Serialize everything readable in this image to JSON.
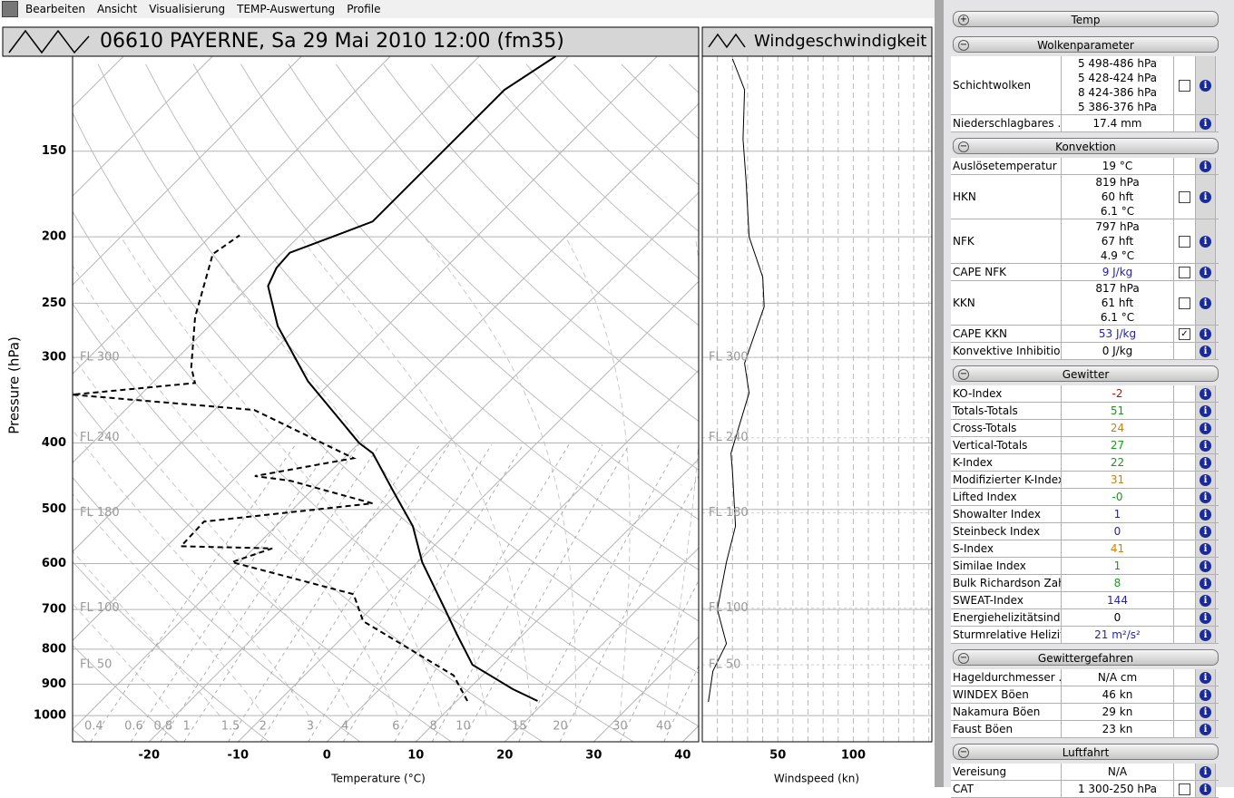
{
  "menu": [
    "Bearbeiten",
    "Ansicht",
    "Visualisierung",
    "TEMP-Auswertung",
    "Profile"
  ],
  "skewt": {
    "type": "line",
    "title": "06610 PAYERNE, Sa 29 Mai 2010 12:00 (fm35)",
    "xlabel": "Temperature (°C)",
    "ylabel": "Pressure (hPa)",
    "xlim": [
      -28.6,
      41.8
    ],
    "xticks": [
      -20,
      -10,
      0,
      10,
      20,
      30,
      40
    ],
    "ylim": [
      1092,
      109
    ],
    "yticks": [
      150,
      200,
      250,
      300,
      400,
      500,
      600,
      700,
      800,
      900,
      1000
    ],
    "log_y": true,
    "skew_deg": 45,
    "flight_levels": [
      {
        "value": 300,
        "label": "FL 300"
      },
      {
        "value": 393,
        "label": "FL 240"
      },
      {
        "value": 506,
        "label": "FL 180"
      },
      {
        "value": 697,
        "label": "FL 100"
      },
      {
        "value": 843,
        "label": "FL 50"
      }
    ],
    "mixing_ratios": [
      0.4,
      0.6,
      0.8,
      1,
      1.5,
      2,
      3,
      4,
      6,
      8,
      10,
      15,
      20,
      30,
      40
    ],
    "series": [
      {
        "color": "#000000",
        "dash": false,
        "pressure": [
          952,
          915,
          843,
          762,
          700,
          597,
          529,
          468,
          414,
          400,
          325,
          270,
          236,
          222,
          211,
          200,
          190,
          149,
          122,
          109
        ],
        "values": [
          19.1,
          15.0,
          7.7,
          2.6,
          -1.6,
          -9.5,
          -14.6,
          -21,
          -27.3,
          -30.0,
          -42.7,
          -52.3,
          -57.9,
          -59,
          -59.2,
          -56.2,
          -53.4,
          -53.4,
          -53.4,
          -51.4
        ]
      },
      {
        "color": "#000000",
        "dash": true,
        "pressure": [
          952,
          874,
          798,
          728,
          665,
          597,
          570,
          566,
          521,
          490,
          454,
          447,
          421,
          358,
          340,
          327,
          310,
          262,
          212,
          199
        ],
        "values": [
          11.2,
          6.8,
          -1.3,
          -9.5,
          -13.6,
          -30.9,
          -27.9,
          -38.4,
          -38.6,
          -21.7,
          -33.5,
          -38,
          -28.9,
          -45.5,
          -67.7,
          -55.2,
          -57.4,
          -62.6,
          -67.7,
          -66.8
        ]
      }
    ]
  },
  "wind": {
    "type": "line",
    "title": "Windgeschwindigkeit",
    "xlabel": "Windspeed (kn)",
    "xlim": [
      0,
      152
    ],
    "xticks": [
      50,
      100
    ],
    "pressure": [
      955,
      861,
      785,
      700,
      597,
      529,
      441,
      414,
      338,
      306,
      253,
      229,
      200,
      166,
      144,
      122,
      110
    ],
    "values": [
      4,
      7,
      16,
      10,
      16,
      22,
      20,
      19,
      31,
      28,
      41,
      40,
      31,
      29,
      27,
      28,
      20
    ]
  },
  "panel": {
    "sections": [
      {
        "title": "Temp",
        "collapsed": true,
        "rows": []
      },
      {
        "title": "Wolkenparameter",
        "collapsed": false,
        "rows": [
          {
            "label": "Schichtwolken",
            "values": [
              "5  498-486 hPa",
              "5  428-424 hPa",
              "8  424-386 hPa",
              "5  386-376 hPa"
            ],
            "checkbox": false
          },
          {
            "label": "Niederschlagbares ...",
            "value": "17.4 mm"
          }
        ]
      },
      {
        "title": "Konvektion",
        "collapsed": false,
        "rows": [
          {
            "label": "Auslösetemperatur",
            "value": "19 °C"
          },
          {
            "label": "HKN",
            "values": [
              "819 hPa",
              "60 hft",
              "6.1 °C"
            ],
            "checkbox": false
          },
          {
            "label": "NFK",
            "values": [
              "797 hPa",
              "67 hft",
              "4.9 °C"
            ],
            "checkbox": false
          },
          {
            "label": "CAPE NFK",
            "value": "9 J/kg",
            "color": "#2020c0",
            "checkbox": false
          },
          {
            "label": "KKN",
            "values": [
              "817 hPa",
              "61 hft",
              "6.1 °C"
            ],
            "checkbox": false
          },
          {
            "label": "CAPE KKN",
            "value": "53 J/kg",
            "color": "#2020c0",
            "checkbox": true
          },
          {
            "label": "Konvektive Inhibition",
            "value": "0 J/kg"
          }
        ]
      },
      {
        "title": "Gewitter",
        "collapsed": false,
        "rows": [
          {
            "label": "KO-Index",
            "value": "-2",
            "color": "#e00000"
          },
          {
            "label": "Totals-Totals",
            "value": "51",
            "color": "#10a010"
          },
          {
            "label": "Cross-Totals",
            "value": "24",
            "color": "#d08000"
          },
          {
            "label": "Vertical-Totals",
            "value": "27",
            "color": "#10a010"
          },
          {
            "label": "K-Index",
            "value": "22",
            "color": "#10a010"
          },
          {
            "label": "Modifizierter K-Index",
            "value": "31",
            "color": "#d08000"
          },
          {
            "label": "Lifted Index",
            "value": "-0",
            "color": "#10a010"
          },
          {
            "label": "Showalter Index",
            "value": "1",
            "color": "#2020c0"
          },
          {
            "label": "Steinbeck Index",
            "value": "0",
            "color": "#2020c0"
          },
          {
            "label": "S-Index",
            "value": "41",
            "color": "#d08000"
          },
          {
            "label": "Similae Index",
            "value": "1",
            "color": "#10a010"
          },
          {
            "label": "Bulk Richardson Zahl",
            "value": "8",
            "color": "#10a010"
          },
          {
            "label": "SWEAT-Index",
            "value": "144",
            "color": "#2020c0"
          },
          {
            "label": "Energiehelizitätsindex",
            "value": "0"
          },
          {
            "label": "Sturmrelative Helizität",
            "value": "21 m²/s²",
            "color": "#2020c0"
          }
        ]
      },
      {
        "title": "Gewittergefahren",
        "collapsed": false,
        "rows": [
          {
            "label": "Hageldurchmesser ...",
            "value": "N/A cm"
          },
          {
            "label": "WINDEX Böen",
            "value": "46 kn"
          },
          {
            "label": "Nakamura Böen",
            "value": "29 kn"
          },
          {
            "label": "Faust Böen",
            "value": "23 kn"
          }
        ]
      },
      {
        "title": "Luftfahrt",
        "collapsed": false,
        "rows": [
          {
            "label": "Vereisung",
            "value": "N/A"
          },
          {
            "label": "CAT",
            "value": "1  300-250 hPa",
            "checkbox": false
          }
        ]
      }
    ]
  }
}
